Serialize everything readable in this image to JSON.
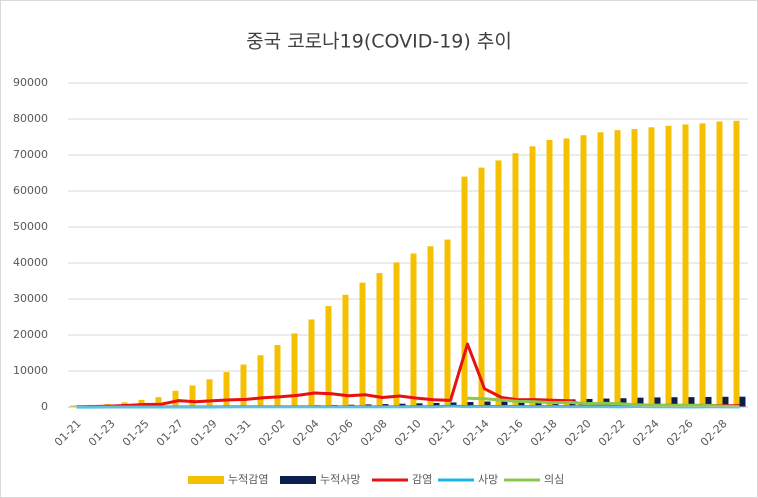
{
  "chart_data": {
    "type": "combo",
    "title": "중국 코로나19(COVID-19) 추이",
    "categories": [
      "01-21",
      null,
      "01-23",
      null,
      "01-25",
      null,
      "01-27",
      null,
      "01-29",
      null,
      "01-31",
      null,
      "02-02",
      null,
      "02-04",
      null,
      "02-06",
      null,
      "02-08",
      null,
      "02-10",
      null,
      "02-12",
      null,
      "02-14",
      null,
      "02-16",
      null,
      "02-18",
      null,
      "02-20",
      null,
      "02-22",
      null,
      "02-24",
      null,
      "02-26",
      null,
      "02-28",
      null
    ],
    "series": [
      {
        "name": "누적감염",
        "type": "bar",
        "color": "#f5c000",
        "values": [
          440,
          571,
          830,
          1287,
          1975,
          2744,
          4515,
          5974,
          7711,
          9692,
          11791,
          14380,
          17205,
          20438,
          24324,
          28018,
          31161,
          34546,
          37198,
          40171,
          42638,
          44653,
          46500,
          64000,
          66500,
          68500,
          70500,
          72400,
          74200,
          74600,
          75500,
          76300,
          76900,
          77200,
          77700,
          78100,
          78500,
          78800,
          79300,
          79500
        ]
      },
      {
        "name": "누적사망",
        "type": "bar",
        "color": "#0b1f4f",
        "values": [
          9,
          17,
          25,
          41,
          56,
          80,
          106,
          132,
          170,
          213,
          259,
          304,
          361,
          425,
          490,
          563,
          636,
          722,
          811,
          908,
          1016,
          1113,
          1259,
          1380,
          1523,
          1665,
          1770,
          1868,
          2004,
          2118,
          2236,
          2345,
          2442,
          2592,
          2663,
          2715,
          2744,
          2788,
          2835,
          2870
        ]
      },
      {
        "name": "감염",
        "type": "line",
        "color": "#e81010",
        "values": [
          77,
          131,
          259,
          444,
          688,
          769,
          1771,
          1459,
          1737,
          1982,
          2102,
          2590,
          2829,
          3235,
          3887,
          3694,
          3143,
          3385,
          2652,
          3062,
          2478,
          2015,
          1820,
          17500,
          5090,
          2641,
          2009,
          2048,
          1886,
          1749,
          394,
          889,
          397,
          648,
          409,
          508,
          406,
          433,
          327,
          427
        ]
      },
      {
        "name": "사망",
        "type": "line",
        "color": "#18b4e8",
        "values": [
          9,
          8,
          16,
          15,
          15,
          24,
          26,
          26,
          38,
          43,
          46,
          45,
          57,
          64,
          65,
          73,
          73,
          86,
          89,
          97,
          108,
          97,
          254,
          121,
          143,
          142,
          105,
          98,
          136,
          114,
          118,
          109,
          97,
          150,
          71,
          52,
          29,
          44,
          47,
          35
        ]
      },
      {
        "name": "의심",
        "type": "line",
        "color": "#8cc850",
        "values": [
          null,
          null,
          null,
          null,
          null,
          null,
          null,
          null,
          null,
          null,
          null,
          null,
          null,
          null,
          null,
          null,
          null,
          null,
          null,
          null,
          null,
          null,
          null,
          2450,
          2277,
          1918,
          1563,
          1432,
          1185,
          1277,
          936,
          1016,
          882,
          620,
          530,
          439,
          508,
          452,
          248,
          180
        ]
      }
    ],
    "ylim": [
      0,
      90000
    ],
    "yticks": [
      0,
      10000,
      20000,
      30000,
      40000,
      50000,
      60000,
      70000,
      80000,
      90000
    ],
    "grid": true,
    "legend": "bottom"
  }
}
